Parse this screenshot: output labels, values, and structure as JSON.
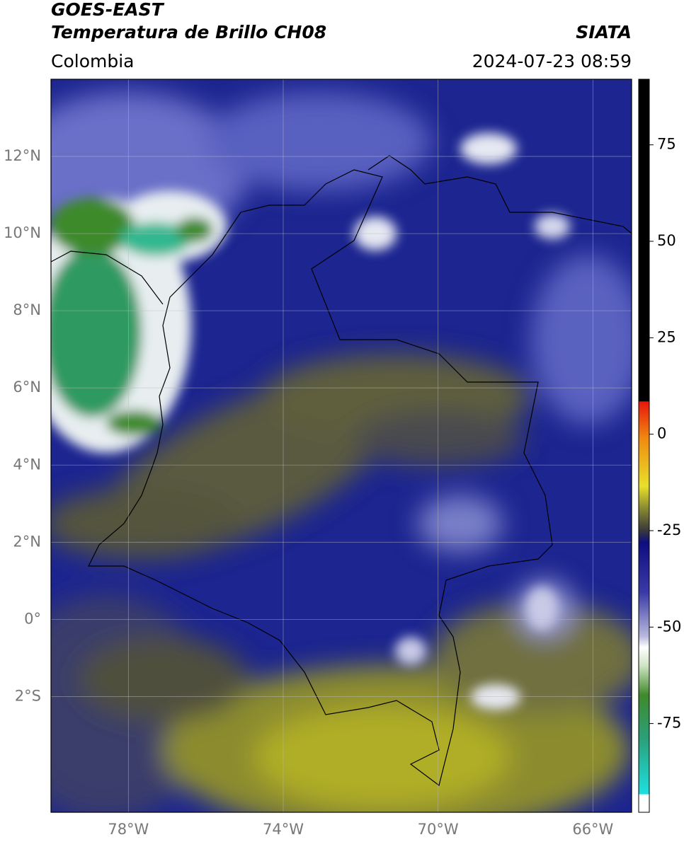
{
  "header": {
    "title": "GOES-EAST",
    "subtitle": "Temperatura de Brillo CH08",
    "region": "Colombia",
    "source": "SIATA",
    "timestamp": "2024-07-23 08:59"
  },
  "map": {
    "lonlim": [
      -80,
      -65
    ],
    "latlim": [
      -5,
      14
    ],
    "lat_ticks": [
      {
        "value": 12,
        "label": "12°N"
      },
      {
        "value": 10,
        "label": "10°N"
      },
      {
        "value": 8,
        "label": "8°N"
      },
      {
        "value": 6,
        "label": "6°N"
      },
      {
        "value": 4,
        "label": "4°N"
      },
      {
        "value": 2,
        "label": "2°N"
      },
      {
        "value": 0,
        "label": "0°"
      },
      {
        "value": -2,
        "label": "2°S"
      }
    ],
    "lon_ticks": [
      {
        "value": -78,
        "label": "78°W"
      },
      {
        "value": -74,
        "label": "74°W"
      },
      {
        "value": -70,
        "label": "70°W"
      },
      {
        "value": -66,
        "label": "66°W"
      }
    ]
  },
  "colorbar": {
    "ylim": [
      -98,
      92
    ],
    "ticks": [
      75,
      50,
      25,
      0,
      -25,
      -50,
      -75
    ]
  }
}
